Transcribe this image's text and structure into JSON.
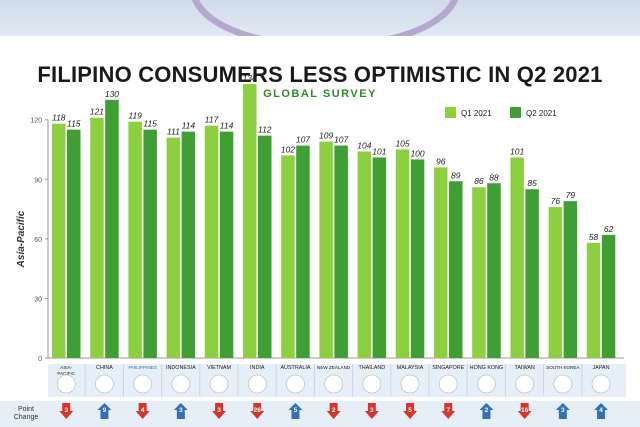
{
  "chart_data": {
    "type": "bar",
    "title": "FILIPINO CONSUMERS LESS OPTIMISTIC IN Q2 2021",
    "subtitle": "GLOBAL SURVEY",
    "ylabel": "Asia-Pacific",
    "ylim": [
      0,
      140
    ],
    "yticks": [
      0,
      30,
      60,
      90,
      120
    ],
    "categories": [
      "ASIA-PACIFIC",
      "CHINA",
      "PHILIPPINES",
      "INDONESIA",
      "VIETNAM",
      "INDIA",
      "AUSTRALIA",
      "NEW ZEALAND",
      "THAILAND",
      "MALAYSIA",
      "SINGAPORE",
      "HONG KONG",
      "TAIWAN",
      "SOUTH KOREA",
      "JAPAN"
    ],
    "series": [
      {
        "name": "Q1 2021",
        "values": [
          118,
          121,
          119,
          111,
          117,
          138,
          102,
          109,
          104,
          105,
          96,
          86,
          101,
          76,
          58
        ]
      },
      {
        "name": "Q2 2021",
        "values": [
          115,
          130,
          115,
          114,
          114,
          112,
          107,
          107,
          101,
          100,
          89,
          88,
          85,
          79,
          62
        ]
      }
    ],
    "point_change_label": "Point Change",
    "point_change": [
      3,
      9,
      4,
      3,
      3,
      26,
      5,
      2,
      3,
      5,
      7,
      2,
      16,
      3,
      4
    ],
    "highlight_category": "PHILIPPINES",
    "legend_position": "top-right",
    "grid": false,
    "colors": {
      "q1": "#8ccf3f",
      "q2": "#3f9f34",
      "down": "#d9342b",
      "up": "#2f73b5",
      "highlight_label": "#2f73b5"
    }
  }
}
